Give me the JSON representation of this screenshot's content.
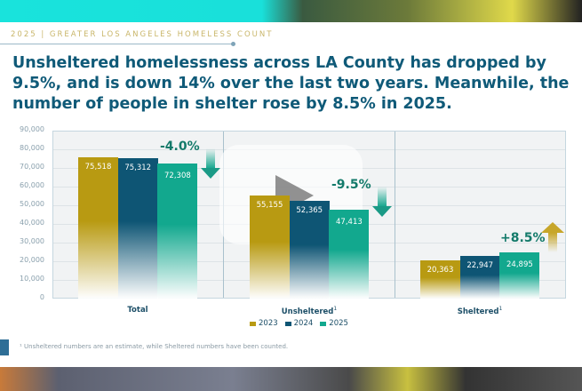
{
  "header": {
    "kicker": "2025 | GREATER LOS ANGELES HOMELESS COUNT",
    "headline": "Unsheltered homelessness across LA County has dropped by 9.5%, and is down 14% over the last two years. Meanwhile, the number of people in shelter rose by 8.5% in 2025."
  },
  "chart_data": {
    "type": "bar",
    "categories": [
      "Total",
      "Unsheltered",
      "Sheltered"
    ],
    "category_footnote_marks": [
      "",
      "1",
      "1"
    ],
    "series": [
      {
        "name": "2023",
        "color": "#b89a12",
        "values": [
          75518,
          55155,
          20363
        ],
        "labels": [
          "75,518",
          "55,155",
          "20,363"
        ]
      },
      {
        "name": "2024",
        "color": "#0e5574",
        "values": [
          75312,
          52365,
          22947
        ],
        "labels": [
          "75,312",
          "52,365",
          "22,947"
        ]
      },
      {
        "name": "2025",
        "color": "#12a88e",
        "values": [
          72308,
          47413,
          24895
        ],
        "labels": [
          "72,308",
          "47,413",
          "24,895"
        ]
      }
    ],
    "changes": [
      {
        "label": "-4.0%",
        "direction": "down"
      },
      {
        "label": "-9.5%",
        "direction": "down"
      },
      {
        "label": "+8.5%",
        "direction": "up"
      }
    ],
    "ylim": [
      0,
      90000
    ],
    "yticks": [
      "0",
      "10,000",
      "20,000",
      "30,000",
      "40,000",
      "50,000",
      "60,000",
      "70,000",
      "80,000",
      "90,000"
    ],
    "legend": "bottom-center",
    "grid": true
  },
  "footnote": "¹ Unsheltered numbers are an estimate, while Sheltered numbers have been counted."
}
